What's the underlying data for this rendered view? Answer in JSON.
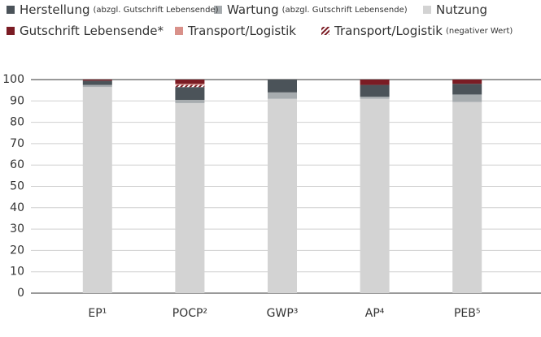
{
  "chart_data": {
    "type": "stacked_bar",
    "categories": [
      "EP¹",
      "POCP²",
      "GWP³",
      "AP⁴",
      "PEB⁵"
    ],
    "ylim": [
      0,
      100
    ],
    "yticks": [
      0,
      10,
      20,
      30,
      40,
      50,
      60,
      70,
      80,
      90,
      100
    ],
    "grid": true,
    "series": [
      {
        "name": "Nutzung",
        "color": "#d3d3d3",
        "values": [
          96.5,
          89,
          91,
          91,
          89.5
        ]
      },
      {
        "name": "Wartung",
        "note": "(abzgl. Gutschrift Lebensende)",
        "color": "#a7acaf",
        "values": [
          1,
          1.5,
          3,
          1,
          3.5
        ]
      },
      {
        "name": "Herstellung",
        "note": "(abzgl. Gutschrift Lebensende)",
        "color": "#4b5359",
        "values": [
          2,
          6,
          6,
          5.5,
          5
        ]
      },
      {
        "name": "Transport/Logistik",
        "note": "(negativer Wert)",
        "color": "#7b1c24",
        "pattern": "hatch",
        "values": [
          0,
          1,
          0,
          0,
          0
        ]
      },
      {
        "name": "Transport/Logistik",
        "color": "#d9918a",
        "values": [
          0,
          0.5,
          0,
          0,
          0
        ]
      },
      {
        "name": "Gutschrift Lebensende*",
        "color": "#7b1c24",
        "values": [
          0.5,
          2,
          0,
          2.5,
          2
        ]
      }
    ]
  }
}
